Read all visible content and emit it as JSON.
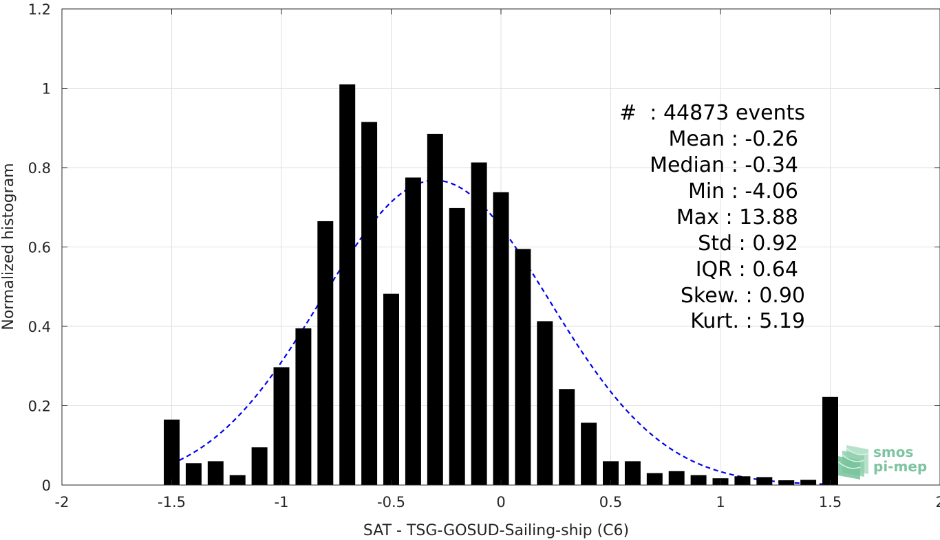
{
  "chart_data": {
    "type": "bar",
    "xlabel": "SAT - TSG-GOSUD-Sailing-ship (C6)",
    "ylabel": "Normalized histogram",
    "xlim": [
      -2,
      2
    ],
    "ylim": [
      0,
      1.2
    ],
    "xticks": [
      "-2",
      "-1.5",
      "-1",
      "-0.5",
      "0",
      "0.5",
      "1",
      "1.5",
      "2"
    ],
    "yticks": [
      "0",
      "0.2",
      "0.4",
      "0.6",
      "0.8",
      "1",
      "1.2"
    ],
    "grid": true,
    "bin_width": 0.1,
    "bar_color": "#000000",
    "x": [
      -1.5,
      -1.4,
      -1.3,
      -1.2,
      -1.1,
      -1.0,
      -0.9,
      -0.8,
      -0.7,
      -0.6,
      -0.5,
      -0.4,
      -0.3,
      -0.2,
      -0.1,
      0.0,
      0.1,
      0.2,
      0.3,
      0.4,
      0.5,
      0.6,
      0.7,
      0.8,
      0.9,
      1.0,
      1.1,
      1.2,
      1.3,
      1.4,
      1.5
    ],
    "values": [
      0.165,
      0.055,
      0.06,
      0.025,
      0.095,
      0.297,
      0.395,
      0.665,
      1.01,
      0.915,
      0.482,
      0.775,
      0.885,
      0.698,
      0.813,
      0.738,
      0.595,
      0.413,
      0.242,
      0.157,
      0.06,
      0.06,
      0.03,
      0.035,
      0.025,
      0.017,
      0.022,
      0.02,
      0.012,
      0.013,
      0.222
    ],
    "fit_curve": {
      "style": "dashed",
      "color": "#0000ee",
      "mean": -0.3,
      "sigma": 0.52,
      "peak": 0.768,
      "x_range": [
        -1.5,
        1.5
      ]
    },
    "annotation": [
      "#  : 44873 events",
      "Mean : -0.26",
      "Median : -0.34",
      "Min : -4.06",
      "Max : 13.88",
      "Std : 0.92",
      "IQR : 0.64",
      "Skew. : 0.90",
      "Kurt. : 5.19"
    ]
  },
  "logo": {
    "line1": "smos",
    "line2": "pi-mep",
    "color": "#7fc4a0"
  }
}
